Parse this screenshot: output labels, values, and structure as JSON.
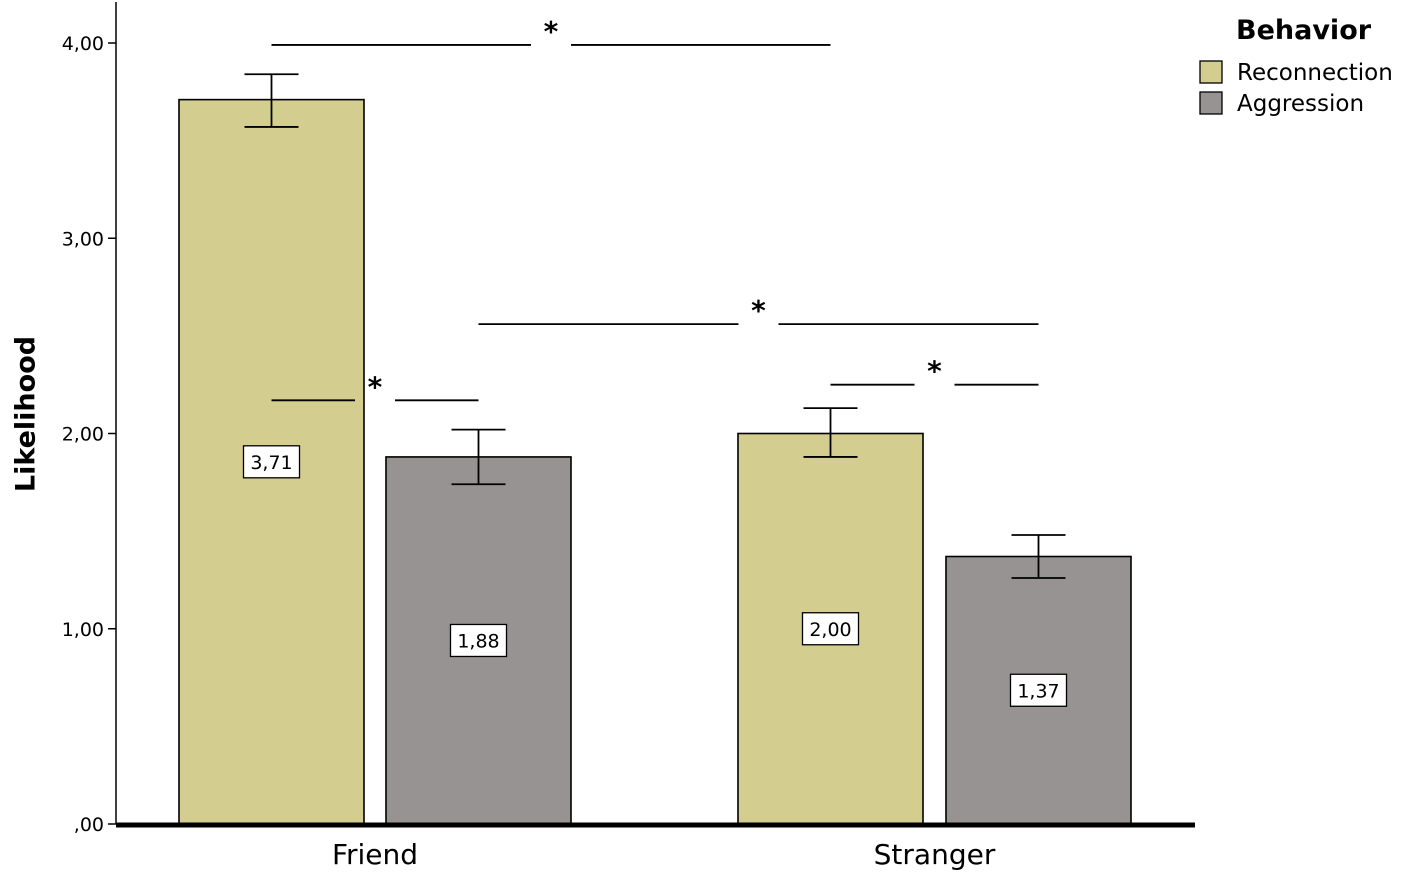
{
  "chart_data": {
    "type": "bar",
    "title": "",
    "xlabel": "",
    "ylabel": "Likelihood",
    "ylim": [
      0,
      4
    ],
    "yticks": [
      {
        "value": 0,
        "label": ",00"
      },
      {
        "value": 1,
        "label": "1,00"
      },
      {
        "value": 2,
        "label": "2,00"
      },
      {
        "value": 3,
        "label": "3,00"
      },
      {
        "value": 4,
        "label": "4,00"
      }
    ],
    "categories": [
      "Friend",
      "Stranger"
    ],
    "legend": {
      "title": "Behavior",
      "position": "top-right"
    },
    "grid": false,
    "series": [
      {
        "name": "Reconnection",
        "color": "#d3cd8f",
        "values": [
          3.71,
          2.0
        ],
        "value_labels": [
          "3,71",
          "2,00"
        ],
        "error_low": [
          3.57,
          1.88
        ],
        "error_high": [
          3.84,
          2.13
        ]
      },
      {
        "name": "Aggression",
        "color": "#979393",
        "values": [
          1.88,
          1.37
        ],
        "value_labels": [
          "1,88",
          "1,37"
        ],
        "error_low": [
          1.74,
          1.26
        ],
        "error_high": [
          2.02,
          1.48
        ]
      }
    ],
    "significance": [
      {
        "label": "*",
        "from": {
          "category": 0,
          "series": 0
        },
        "to": {
          "category": 1,
          "series": 0
        },
        "y": 3.99
      },
      {
        "label": "*",
        "from": {
          "category": 0,
          "series": 0
        },
        "to": {
          "category": 0,
          "series": 1
        },
        "y": 2.17
      },
      {
        "label": "*",
        "from": {
          "category": 0,
          "series": 1
        },
        "to": {
          "category": 1,
          "series": 1
        },
        "y": 2.56
      },
      {
        "label": "*",
        "from": {
          "category": 1,
          "series": 0
        },
        "to": {
          "category": 1,
          "series": 1
        },
        "y": 2.25
      }
    ]
  }
}
